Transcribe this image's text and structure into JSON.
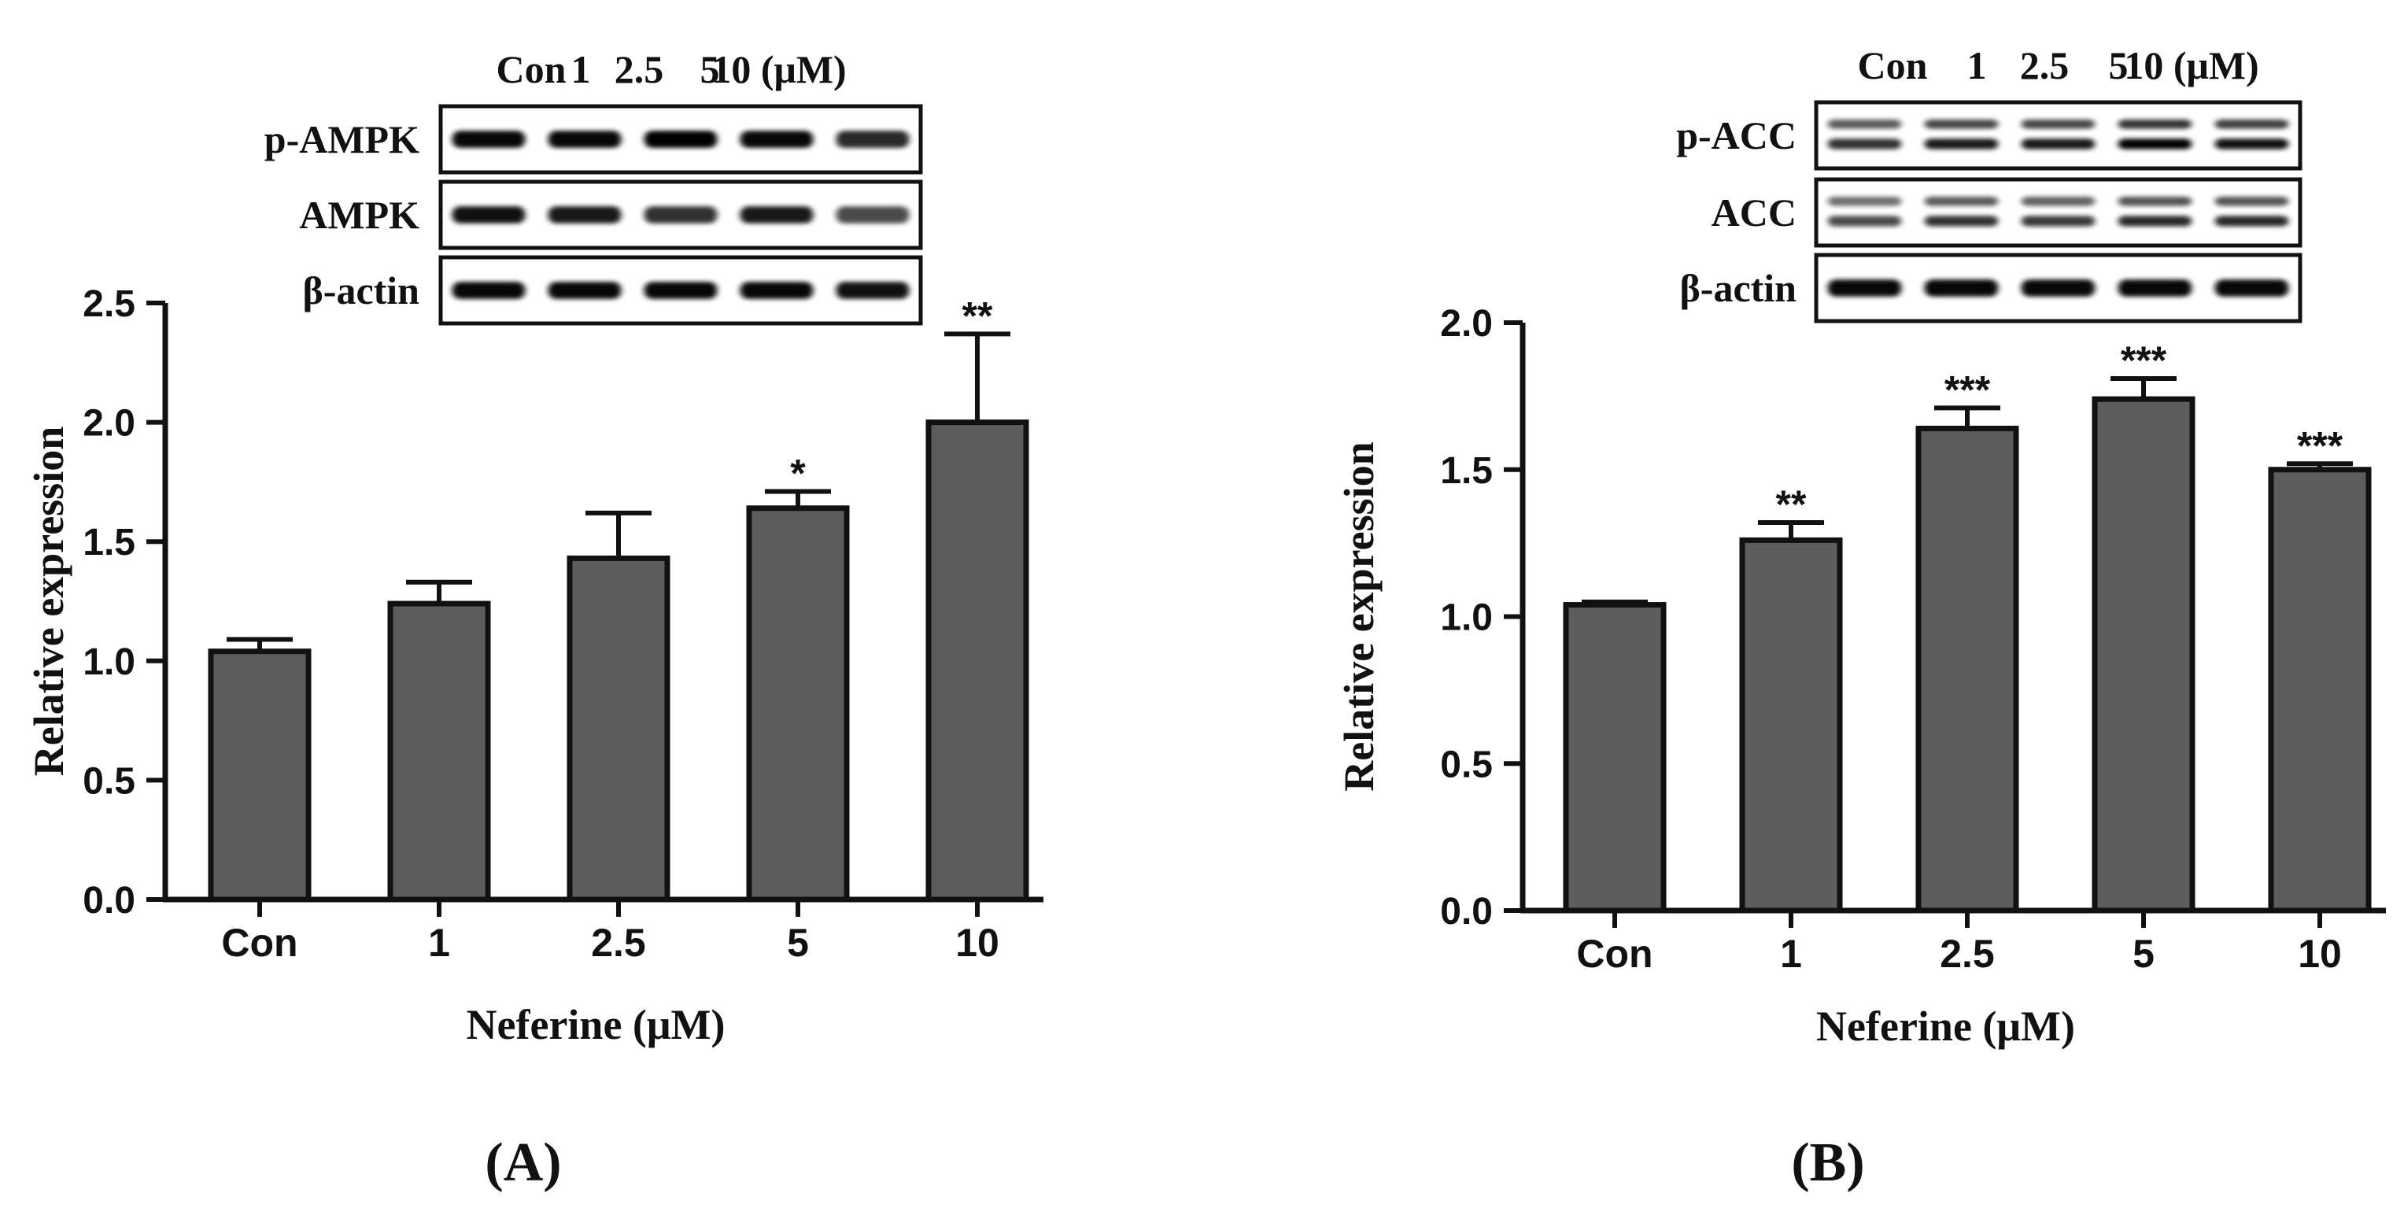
{
  "chart_data": [
    {
      "panel_label": "A",
      "type": "bar",
      "xlabel": "Neferine (μM)",
      "ylabel": "Relative expression",
      "ylim": [
        0,
        2.5
      ],
      "yticks": [
        "0.0",
        "0.5",
        "1.0",
        "1.5",
        "2.0",
        "2.5"
      ],
      "categories": [
        "Con",
        "1",
        "2.5",
        "5",
        "10"
      ],
      "values": [
        1.04,
        1.24,
        1.43,
        1.64,
        2.0
      ],
      "errors": [
        0.05,
        0.09,
        0.19,
        0.07,
        0.37
      ],
      "significance": [
        "",
        "",
        "",
        "*",
        "**"
      ],
      "bar_color": "#5d5d5d",
      "blot": {
        "lane_labels": [
          "Con",
          "1",
          "2.5",
          "5",
          "10 (μM)"
        ],
        "rows": [
          {
            "label": "p-AMPK",
            "intensity": [
              0.95,
              0.95,
              1.0,
              0.95,
              0.75
            ]
          },
          {
            "label": "AMPK",
            "intensity": [
              0.9,
              0.85,
              0.7,
              0.85,
              0.55
            ]
          },
          {
            "label": "β-actin",
            "intensity": [
              0.95,
              0.95,
              0.95,
              0.95,
              0.9
            ]
          }
        ]
      }
    },
    {
      "panel_label": "B",
      "type": "bar",
      "xlabel": "Neferine (μM)",
      "ylabel": "Relative expression",
      "ylim": [
        0,
        2.0
      ],
      "yticks": [
        "0.0",
        "0.5",
        "1.0",
        "1.5",
        "2.0"
      ],
      "categories": [
        "Con",
        "1",
        "2.5",
        "5",
        "10"
      ],
      "values": [
        1.04,
        1.26,
        1.64,
        1.74,
        1.5
      ],
      "errors": [
        0.01,
        0.06,
        0.07,
        0.07,
        0.02
      ],
      "significance": [
        "",
        "**",
        "***",
        "***",
        "***"
      ],
      "bar_color": "#5d5d5d",
      "blot": {
        "lane_labels": [
          "Con",
          "1",
          "2.5",
          "5",
          "10 (μM)"
        ],
        "rows": [
          {
            "label": "p-ACC",
            "intensity": [
              0.7,
              0.85,
              0.85,
              1.0,
              0.9
            ],
            "double": true
          },
          {
            "label": "ACC",
            "intensity": [
              0.55,
              0.7,
              0.65,
              0.75,
              0.75
            ],
            "double": true
          },
          {
            "label": "β-actin",
            "intensity": [
              0.95,
              0.95,
              0.95,
              0.95,
              0.95
            ]
          }
        ]
      }
    }
  ]
}
